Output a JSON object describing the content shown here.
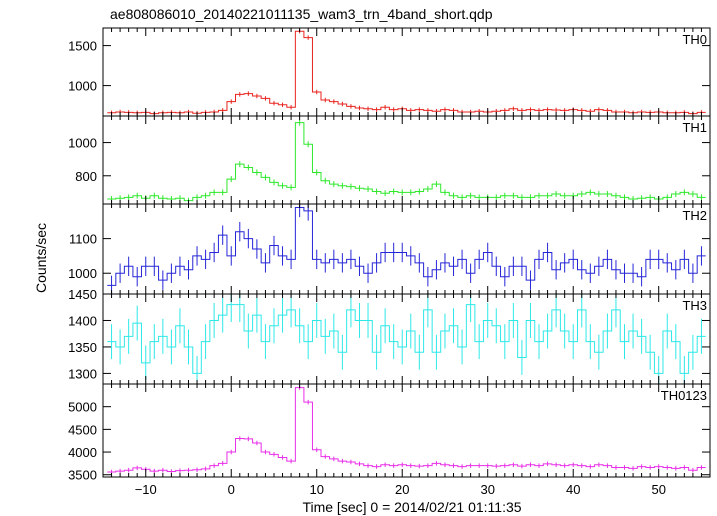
{
  "chart_data": {
    "type": "line",
    "title": "ae808086010_20140221011135_wam3_trn_4band_short.qdp",
    "xlabel": "Time [sec] 0 = 2014/02/21 01:11:35",
    "ylabel": "Counts/sec",
    "xlim": [
      -15,
      56
    ],
    "x_ticks": [
      -10,
      0,
      10,
      20,
      30,
      40,
      50
    ],
    "bin_width": 1,
    "x": [
      -14,
      -13,
      -12,
      -11,
      -10,
      -9,
      -8,
      -7,
      -6,
      -5,
      -4,
      -3,
      -2,
      -1,
      0,
      1,
      2,
      3,
      4,
      5,
      6,
      7,
      8,
      9,
      10,
      11,
      12,
      13,
      14,
      15,
      16,
      17,
      18,
      19,
      20,
      21,
      22,
      23,
      24,
      25,
      26,
      27,
      28,
      29,
      30,
      31,
      32,
      33,
      34,
      35,
      36,
      37,
      38,
      39,
      40,
      41,
      42,
      43,
      44,
      45,
      46,
      47,
      48,
      49,
      50,
      51,
      52,
      53,
      54,
      55
    ],
    "series": [
      {
        "name": "TH0",
        "color": "#e8231e",
        "ylim": [
          620,
          1720
        ],
        "y_ticks": [
          1000,
          1500
        ],
        "err": 28,
        "values": [
          660,
          670,
          665,
          660,
          665,
          650,
          660,
          665,
          660,
          670,
          655,
          665,
          670,
          690,
          800,
          890,
          900,
          870,
          840,
          780,
          760,
          730,
          1680,
          1600,
          920,
          820,
          800,
          770,
          740,
          720,
          710,
          700,
          730,
          700,
          710,
          690,
          700,
          690,
          680,
          700,
          690,
          670,
          670,
          680,
          670,
          680,
          690,
          710,
          690,
          700,
          690,
          700,
          695,
          690,
          700,
          690,
          680,
          700,
          690,
          670,
          670,
          660,
          670,
          665,
          670,
          660,
          660,
          665,
          650,
          665
        ]
      },
      {
        "name": "TH1",
        "color": "#2fe82c",
        "ylim": [
          630,
          1160
        ],
        "y_ticks": [
          800,
          1000
        ],
        "err": 18,
        "values": [
          660,
          665,
          670,
          680,
          665,
          680,
          665,
          660,
          665,
          650,
          670,
          680,
          700,
          700,
          780,
          870,
          850,
          820,
          790,
          760,
          740,
          730,
          1120,
          990,
          820,
          770,
          750,
          740,
          735,
          725,
          720,
          705,
          695,
          705,
          700,
          700,
          705,
          720,
          750,
          700,
          680,
          670,
          680,
          670,
          670,
          670,
          680,
          680,
          670,
          670,
          680,
          680,
          690,
          680,
          680,
          690,
          700,
          690,
          690,
          680,
          670,
          660,
          665,
          670,
          660,
          670,
          690,
          700,
          690,
          670
        ]
      },
      {
        "name": "TH2",
        "color": "#2626d8",
        "ylim": [
          940,
          1200
        ],
        "y_ticks": [
          1000,
          1100
        ],
        "err": 28,
        "values": [
          965,
          1000,
          1020,
          990,
          1020,
          1020,
          980,
          1000,
          1020,
          1010,
          1050,
          1040,
          1060,
          1110,
          1050,
          1120,
          1100,
          1070,
          1030,
          1080,
          1050,
          1040,
          1190,
          1180,
          1040,
          1030,
          1040,
          1030,
          1040,
          1020,
          1000,
          1030,
          1060,
          1060,
          1060,
          1050,
          1030,
          990,
          1010,
          1030,
          1020,
          1040,
          1000,
          1040,
          1060,
          1020,
          990,
          1020,
          1020,
          980,
          1040,
          1060,
          1010,
          1030,
          1040,
          1010,
          1000,
          1020,
          1040,
          1010,
          1000,
          1000,
          990,
          1040,
          1040,
          1030,
          1010,
          1040,
          1000,
          1050
        ]
      },
      {
        "name": "TH3",
        "color": "#2ee8e8",
        "ylim": [
          1280,
          1450
        ],
        "y_ticks": [
          1300,
          1350,
          1400,
          1450
        ],
        "err": 33,
        "values": [
          1360,
          1350,
          1370,
          1395,
          1320,
          1360,
          1370,
          1350,
          1390,
          1350,
          1300,
          1360,
          1400,
          1410,
          1430,
          1430,
          1380,
          1410,
          1360,
          1390,
          1410,
          1420,
          1390,
          1360,
          1400,
          1370,
          1380,
          1340,
          1420,
          1400,
          1400,
          1340,
          1390,
          1360,
          1350,
          1380,
          1340,
          1420,
          1340,
          1380,
          1390,
          1350,
          1430,
          1360,
          1400,
          1390,
          1360,
          1400,
          1330,
          1400,
          1360,
          1380,
          1420,
          1380,
          1360,
          1420,
          1360,
          1340,
          1380,
          1420,
          1360,
          1380,
          1370,
          1340,
          1300,
          1380,
          1360,
          1300,
          1340,
          1370
        ]
      },
      {
        "name": "TH0123",
        "color": "#e82ee8",
        "ylim": [
          3450,
          5500
        ],
        "y_ticks": [
          3500,
          4000,
          4500,
          5000
        ],
        "err": 50,
        "values": [
          3560,
          3580,
          3600,
          3650,
          3620,
          3580,
          3600,
          3570,
          3590,
          3600,
          3610,
          3630,
          3700,
          3750,
          4000,
          4300,
          4290,
          4200,
          4000,
          3950,
          3880,
          3800,
          5420,
          5100,
          4050,
          3900,
          3850,
          3800,
          3780,
          3740,
          3700,
          3680,
          3720,
          3700,
          3720,
          3700,
          3690,
          3700,
          3750,
          3720,
          3700,
          3680,
          3700,
          3700,
          3700,
          3690,
          3700,
          3720,
          3690,
          3720,
          3700,
          3740,
          3720,
          3700,
          3720,
          3700,
          3680,
          3720,
          3700,
          3660,
          3660,
          3640,
          3680,
          3660,
          3680,
          3660,
          3640,
          3660,
          3600,
          3660
        ]
      }
    ]
  }
}
